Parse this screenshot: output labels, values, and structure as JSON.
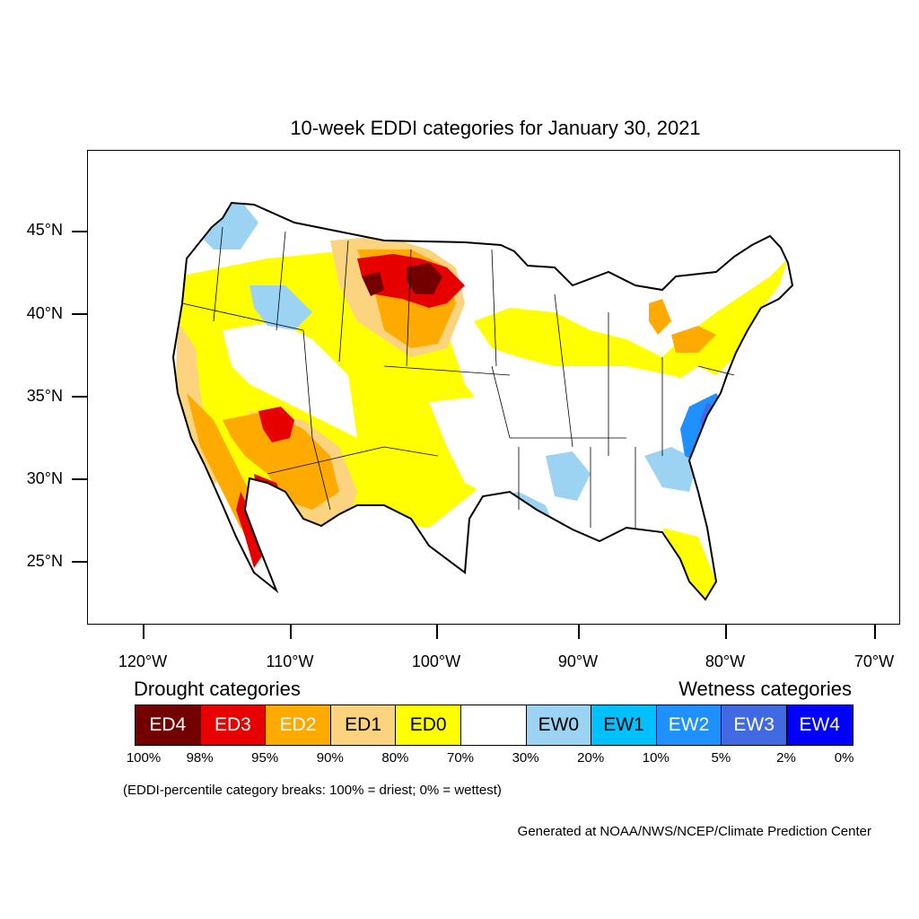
{
  "title": "10-week EDDI categories for January 30, 2021",
  "map": {
    "lon_range": [
      -124.0,
      -68.5
    ],
    "lat_range": [
      21.0,
      50.0
    ],
    "lat_ticks": [
      "45°N",
      "40°N",
      "35°N",
      "30°N",
      "25°N"
    ],
    "lon_ticks": [
      "120°W",
      "110°W",
      "100°W",
      "90°W",
      "80°W",
      "70°W"
    ]
  },
  "legend": {
    "drought_title": "Drought categories",
    "wetness_title": "Wetness categories",
    "categories": [
      {
        "label": "ED4",
        "color": "#730000",
        "text_color": "#ffffff"
      },
      {
        "label": "ED3",
        "color": "#e60000",
        "text_color": "#ffffff"
      },
      {
        "label": "ED2",
        "color": "#ffaa00",
        "text_color": "#ffffff"
      },
      {
        "label": "ED1",
        "color": "#fcd37f",
        "text_color": "#000000"
      },
      {
        "label": "ED0",
        "color": "#ffff00",
        "text_color": "#000000"
      },
      {
        "label": "",
        "color": "#ffffff",
        "text_color": "#000000"
      },
      {
        "label": "EW0",
        "color": "#9dd3f2",
        "text_color": "#000000"
      },
      {
        "label": "EW1",
        "color": "#00c0ff",
        "text_color": "#000000"
      },
      {
        "label": "EW2",
        "color": "#1e90ff",
        "text_color": "#ffffff"
      },
      {
        "label": "EW3",
        "color": "#4169e1",
        "text_color": "#ffffff"
      },
      {
        "label": "EW4",
        "color": "#0000ff",
        "text_color": "#ffffff"
      }
    ],
    "breaks": [
      "100%",
      "98%",
      "95%",
      "90%",
      "80%",
      "70%",
      "30%",
      "20%",
      "10%",
      "5%",
      "2%",
      "0%"
    ]
  },
  "note": "(EDDI-percentile category breaks: 100% = driest; 0% = wettest)",
  "credit": "Generated at NOAA/NWS/NCEP/Climate Prediction Center"
}
